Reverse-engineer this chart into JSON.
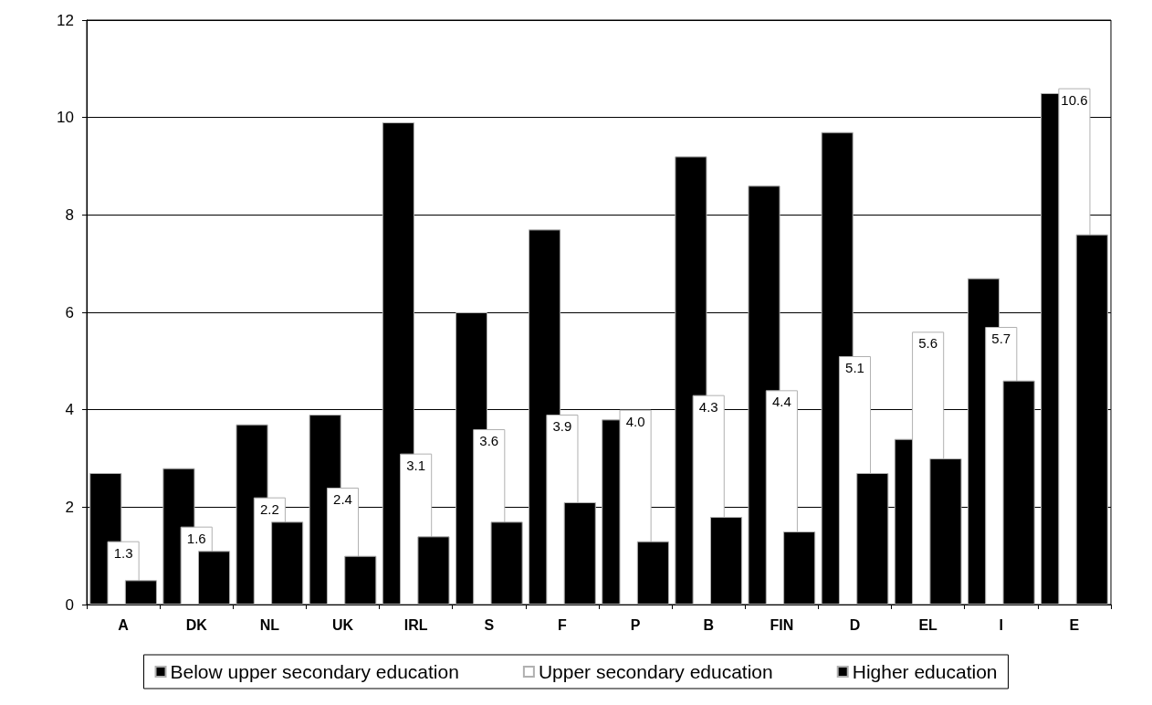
{
  "chart_data": {
    "type": "bar",
    "categories": [
      "A",
      "DK",
      "NL",
      "UK",
      "IRL",
      "S",
      "F",
      "P",
      "B",
      "FIN",
      "D",
      "EL",
      "I",
      "E"
    ],
    "series": [
      {
        "name": "Below upper secondary education",
        "color": "#000000",
        "values": [
          2.7,
          2.8,
          3.7,
          3.9,
          9.9,
          6.0,
          7.7,
          3.8,
          9.2,
          8.6,
          9.7,
          3.4,
          6.7,
          10.5
        ]
      },
      {
        "name": "Upper secondary education",
        "color": "#ffffff",
        "values": [
          1.3,
          1.6,
          2.2,
          2.4,
          3.1,
          3.6,
          3.9,
          4.0,
          4.3,
          4.4,
          5.1,
          5.6,
          5.7,
          10.6
        ],
        "value_labels": [
          "1.3",
          "1.6",
          "2.2",
          "2.4",
          "3.1",
          "3.6",
          "3.9",
          "4.0",
          "4.3",
          "4.4",
          "5.1",
          "5.6",
          "5.7",
          "10.6"
        ]
      },
      {
        "name": "Higher education",
        "color": "#000000",
        "values": [
          0.5,
          1.1,
          1.7,
          1.0,
          1.4,
          1.7,
          2.1,
          1.3,
          1.8,
          1.5,
          2.7,
          3.0,
          4.6,
          7.6
        ]
      }
    ],
    "ylim": [
      0,
      12
    ],
    "yticks": [
      0,
      2,
      4,
      6,
      8,
      10,
      12
    ],
    "grid": "y",
    "legend": "bottom"
  }
}
